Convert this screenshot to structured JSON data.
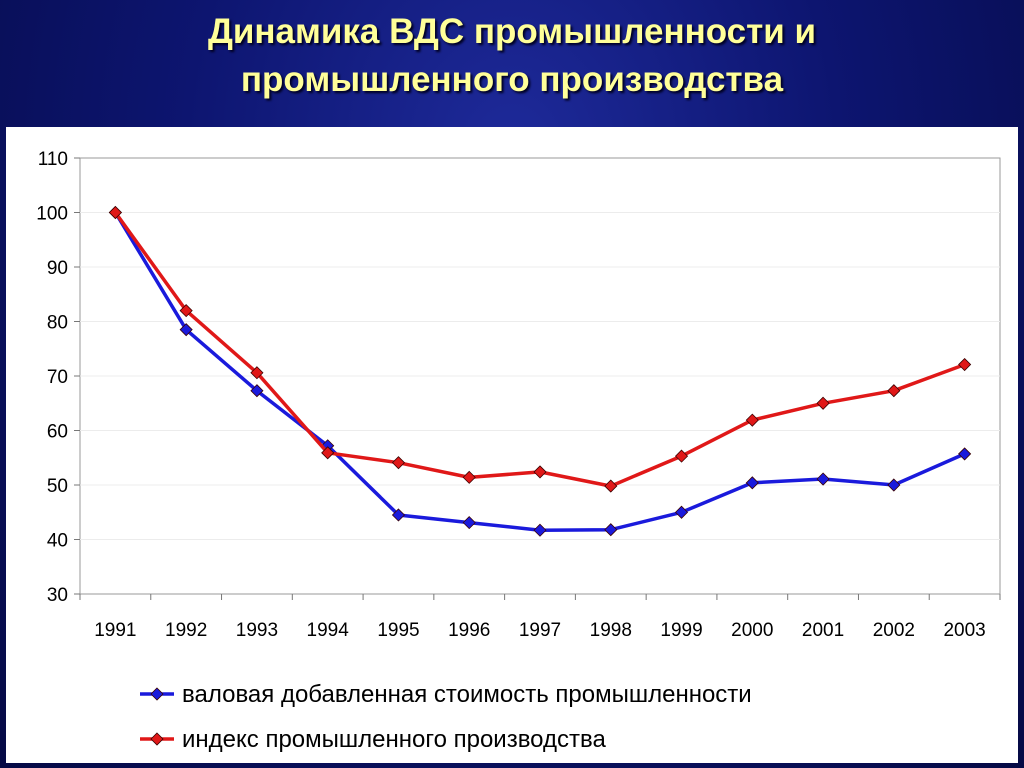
{
  "slide": {
    "title_line1": "Динамика ВДС промышленности и",
    "title_line2": "промышленного производства"
  },
  "colors": {
    "background": "#0d1570",
    "title": "#ffff99",
    "series_blue": "#1a1adc",
    "series_red": "#e01818"
  },
  "chart_data": {
    "type": "line",
    "title": "Динамика ВДС промышленности и промышленного производства",
    "xlabel": "",
    "ylabel": "",
    "x": [
      "1991",
      "1992",
      "1993",
      "1994",
      "1995",
      "1996",
      "1997",
      "1998",
      "1999",
      "2000",
      "2001",
      "2002",
      "2003"
    ],
    "ylim": [
      30,
      110
    ],
    "yticks": [
      30,
      40,
      50,
      60,
      70,
      80,
      90,
      100,
      110
    ],
    "grid": true,
    "legend_position": "bottom",
    "series": [
      {
        "name": "валовая добавленная стоимость промышленности",
        "color": "#1a1adc",
        "marker": "diamond",
        "values": [
          100,
          78.5,
          67.3,
          57.2,
          44.5,
          43.1,
          41.7,
          41.8,
          45.0,
          50.4,
          51.1,
          50.0,
          55.7
        ]
      },
      {
        "name": "индекс промышленного производства",
        "color": "#e01818",
        "marker": "diamond",
        "values": [
          100,
          82.0,
          70.6,
          55.9,
          54.1,
          51.4,
          52.4,
          49.8,
          55.3,
          61.9,
          65.0,
          67.3,
          72.1
        ]
      }
    ]
  }
}
